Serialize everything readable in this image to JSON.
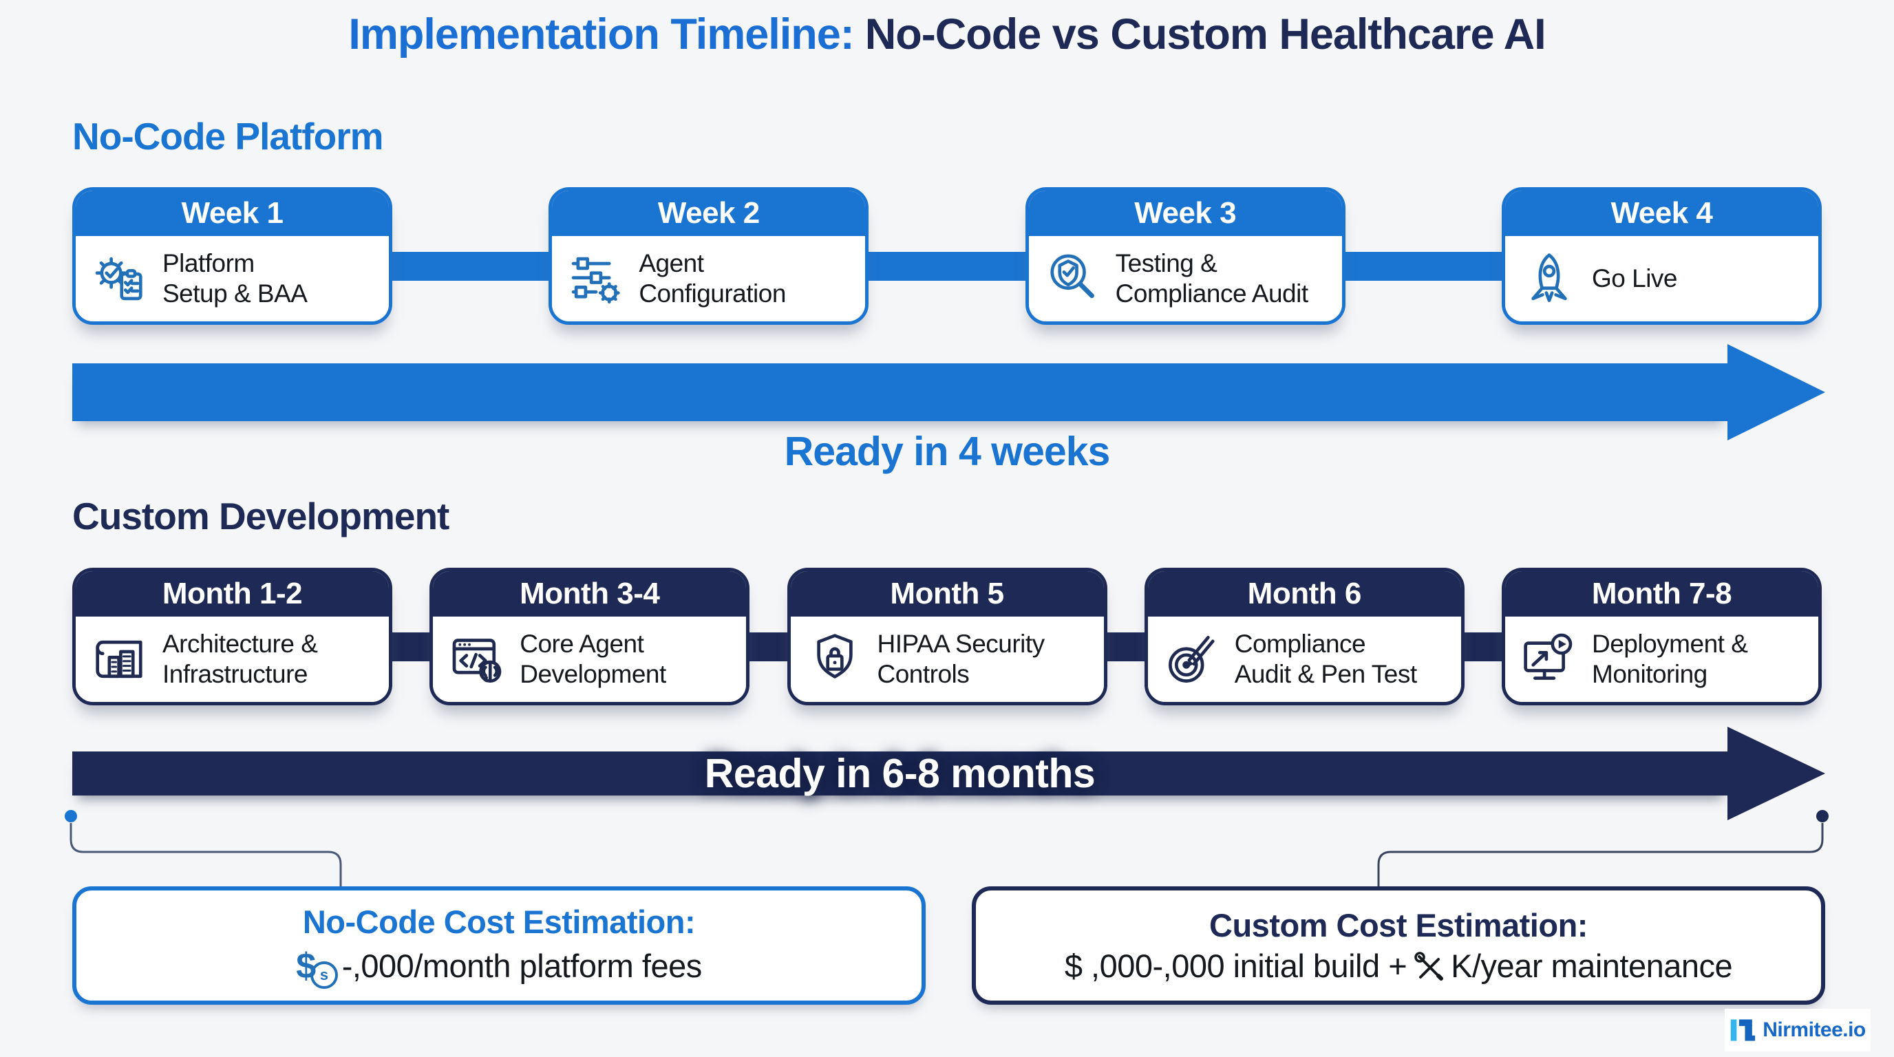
{
  "title": {
    "part1": "Implementation Timeline:",
    "part2": "No-Code vs Custom Healthcare AI"
  },
  "no_code": {
    "heading": "No-Code Platform",
    "arrow_label": "Ready in 4 weeks",
    "cards": [
      {
        "period": "Week 1",
        "lines": [
          "Platform",
          "Setup & BAA"
        ],
        "icon": "gear-checklist-icon"
      },
      {
        "period": "Week 2",
        "lines": [
          "Agent",
          "Configuration"
        ],
        "icon": "sliders-gear-icon"
      },
      {
        "period": "Week 3",
        "lines": [
          "Testing &",
          "Compliance Audit"
        ],
        "icon": "magnifier-shield-icon"
      },
      {
        "period": "Week 4",
        "lines": [
          "Go Live"
        ],
        "icon": "rocket-icon"
      }
    ]
  },
  "custom": {
    "heading": "Custom Development",
    "arrow_label": "Ready in 6-8 months",
    "cards": [
      {
        "period": "Month 1-2",
        "lines": [
          "Architecture &",
          "Infrastructure"
        ],
        "icon": "blueprint-building-icon"
      },
      {
        "period": "Month 3-4",
        "lines": [
          "Core Agent",
          "Development"
        ],
        "icon": "code-brain-icon"
      },
      {
        "period": "Month 5",
        "lines": [
          "HIPAA Security",
          "Controls"
        ],
        "icon": "shield-lock-icon"
      },
      {
        "period": "Month 6",
        "lines": [
          "Compliance",
          "Audit & Pen Test"
        ],
        "icon": "target-pencil-icon"
      },
      {
        "period": "Month 7-8",
        "lines": [
          "Deployment &",
          "Monitoring"
        ],
        "icon": "monitor-launch-icon"
      }
    ]
  },
  "cost": {
    "no_code": {
      "title": "No-Code Cost Estimation:",
      "dollar": "$",
      "coin": "s",
      "text": "-,000/month platform fees"
    },
    "custom": {
      "title": "Custom Cost Estimation:",
      "prefix": "$ ,000-,000 initial build +",
      "suffix": "K/year maintenance"
    }
  },
  "branding": {
    "logo_text": "Nirmitee.io"
  },
  "colors": {
    "blue": "#1a75d2",
    "navy": "#1e2a55",
    "title_blue": "#1b6fd4",
    "background": "#f5f6f8",
    "logo_cyan": "#35b5ee",
    "logo_blue": "#1565c0"
  }
}
